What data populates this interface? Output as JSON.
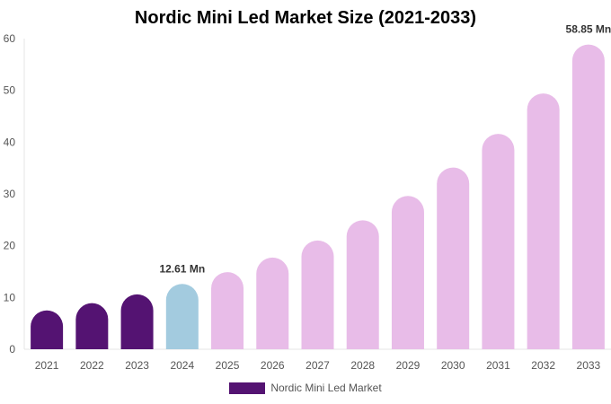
{
  "chart_data": {
    "type": "bar",
    "title": "Nordic Mini Led Market Size (2021-2033)",
    "xlabel": "",
    "ylabel": "",
    "categories": [
      "2021",
      "2022",
      "2023",
      "2024",
      "2025",
      "2026",
      "2027",
      "2028",
      "2029",
      "2030",
      "2031",
      "2032",
      "2033"
    ],
    "series": [
      {
        "name": "Nordic Mini Led Market",
        "values": [
          7.5,
          8.9,
          10.6,
          12.61,
          14.9,
          17.7,
          21.0,
          24.9,
          29.6,
          35.1,
          41.6,
          49.4,
          58.85
        ]
      }
    ],
    "bar_colors": [
      "#541372",
      "#541372",
      "#541372",
      "#a3cbdf",
      "#e8bce8",
      "#e8bce8",
      "#e8bce8",
      "#e8bce8",
      "#e8bce8",
      "#e8bce8",
      "#e8bce8",
      "#e8bce8",
      "#e8bce8"
    ],
    "data_labels": [
      {
        "category": "2024",
        "text": "12.61 Mn"
      },
      {
        "category": "2033",
        "text": "58.85 Mn"
      }
    ],
    "ylim": [
      0,
      60
    ],
    "yticks": [
      0,
      10,
      20,
      30,
      40,
      50,
      60
    ],
    "grid": false,
    "legend_position": "bottom",
    "legend_color": "#541372"
  }
}
